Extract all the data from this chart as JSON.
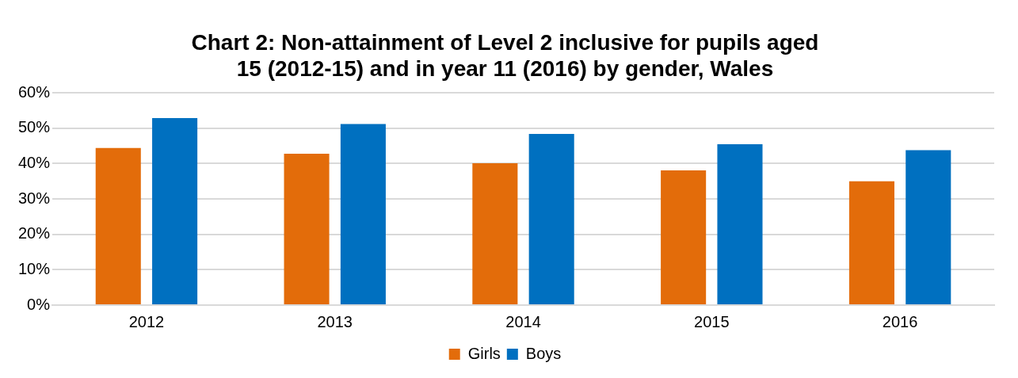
{
  "chart_data": {
    "type": "bar",
    "title": "Chart 2: Non-attainment of Level 2 inclusive for pupils aged 15 (2012-15) and in year 11 (2016) by gender, Wales",
    "categories": [
      "2012",
      "2013",
      "2014",
      "2015",
      "2016"
    ],
    "series": [
      {
        "name": "Girls",
        "color": "#e36c0a",
        "values": [
          44.4,
          42.8,
          40.1,
          38.1,
          35.0
        ]
      },
      {
        "name": "Boys",
        "color": "#0070c0",
        "values": [
          52.9,
          51.2,
          48.4,
          45.5,
          43.8
        ]
      }
    ],
    "ylim": [
      0,
      60
    ],
    "yticks": [
      {
        "value": 0,
        "label": "0%"
      },
      {
        "value": 10,
        "label": "10%"
      },
      {
        "value": 20,
        "label": "20%"
      },
      {
        "value": 30,
        "label": "30%"
      },
      {
        "value": 40,
        "label": "40%"
      },
      {
        "value": 50,
        "label": "50%"
      },
      {
        "value": 60,
        "label": "60%"
      }
    ],
    "grid": "y",
    "legend": "bottom"
  }
}
